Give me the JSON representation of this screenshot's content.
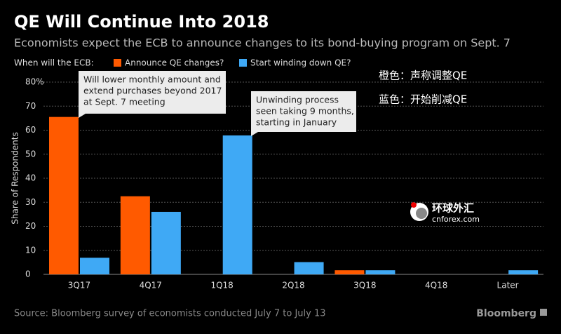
{
  "chart_data": {
    "type": "bar",
    "title": "QE Will Continue Into 2018",
    "subtitle": "Economists expect the ECB to announce changes to its bond-buying program on Sept. 7",
    "legend_title": "When will the ECB:",
    "y_label": "Share of Respondents",
    "categories": [
      "3Q17",
      "4Q17",
      "1Q18",
      "2Q18",
      "3Q18",
      "4Q18",
      "Later"
    ],
    "series": [
      {
        "name": "Announce QE changes?",
        "color": "#ff5a00",
        "values": [
          65.5,
          32.5,
          0,
          0,
          1.7,
          0,
          0
        ]
      },
      {
        "name": "Start winding down QE?",
        "color": "#3fa9f5",
        "values": [
          6.9,
          26,
          57.8,
          5.1,
          1.7,
          0,
          1.7
        ]
      }
    ],
    "ylim": [
      0,
      80
    ],
    "yticks": [
      0,
      10,
      20,
      30,
      40,
      50,
      60,
      70,
      {
        "value": 80,
        "label": "80%"
      }
    ],
    "grid": true,
    "annotations": [
      {
        "lines": [
          "Will lower monthly amount and",
          "extend purchases beyond 2017",
          "at Sept. 7 meeting"
        ]
      },
      {
        "lines": [
          "Unwinding process",
          "seen taking 9 months,",
          "starting in January"
        ]
      }
    ],
    "notes": [
      "橙色：声称调整QE",
      "蓝色：开始削减QE"
    ],
    "watermark": [
      "环球外汇",
      "cnforex.com"
    ],
    "source": "Source: Bloomberg survey of economists conducted July 7 to July 13",
    "brand": "Bloomberg"
  }
}
